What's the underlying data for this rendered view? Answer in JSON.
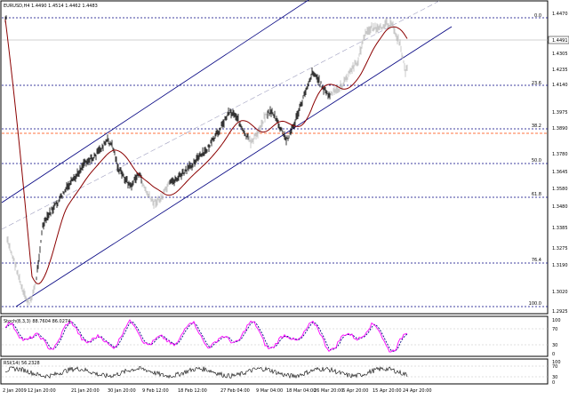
{
  "window": {
    "title": "EURUSD,H4  1.4490 1.4514 1.4462 1.4483"
  },
  "main_chart": {
    "current_price": "1.4491",
    "price_axis": [
      "1.4470",
      "1.4305",
      "1.4235",
      "1.4140",
      "1.3975",
      "1.3890",
      "1.3780",
      "1.3645",
      "1.3580",
      "1.3480",
      "1.3385",
      "1.3275",
      "1.3190",
      "1.3020",
      "1.2925"
    ],
    "fib_levels": [
      "0.0",
      "23.6",
      "38.2",
      "50.0",
      "61.8",
      "76.4",
      "100.0"
    ]
  },
  "stochastic": {
    "title": "Stoch(8,3,3) 88.7604 86.0274",
    "axis": [
      "100",
      "70",
      "30",
      "0"
    ]
  },
  "rsi": {
    "title": "RSI(14) 56.2328",
    "axis": [
      "100",
      "70",
      "30",
      "0"
    ]
  },
  "time_axis": [
    "2 Jan 2009",
    "12 Jan 20:00",
    "21 Jan 20:00",
    "30 Jan 20:00",
    "9 Feb 12:00",
    "18 Feb 12:00",
    "27 Feb 04:00",
    "9 Mar 04:00",
    "18 Mar 04:00",
    "26 Mar 20:00",
    "6 Apr 20:00",
    "15 Apr 20:00",
    "24 Apr 20:00"
  ],
  "colors": {
    "price_bars_dark": "#000000",
    "price_bars_light": "#bbbbbb",
    "moving_average": "#8b0000",
    "channel": "#000080",
    "fib_lines": "#000080",
    "fib_base_line": "#ff4500",
    "stoch_main": "#ff00ff",
    "stoch_signal": "#000080",
    "rsi_line": "#000000"
  }
}
